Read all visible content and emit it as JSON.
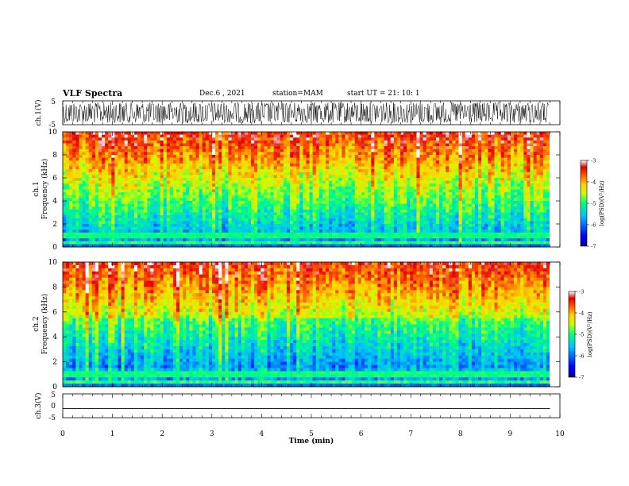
{
  "header": {
    "title": "VLF Spectra",
    "date": "Dec.6 , 2021",
    "station": "station=MAM",
    "start": "start UT =  21: 10: 1"
  },
  "chart_data": [
    {
      "type": "line",
      "panel": "ch1-waveform",
      "ylabel": "ch.1(V)",
      "ylim": [
        -5,
        5
      ],
      "yticks": [
        5,
        -5
      ],
      "xlim": [
        0,
        10
      ]
    },
    {
      "type": "heatmap",
      "panel": "ch1-spectrogram",
      "ylabel": "ch.1\nFrequency (kHz)",
      "ylabel_line1": "ch.1",
      "ylabel_line2": "Frequency (kHz)",
      "ylim": [
        0,
        10
      ],
      "yticks": [
        "0",
        "2",
        "4",
        "6",
        "8",
        "10"
      ],
      "xlim": [
        0,
        10
      ],
      "colorbar": {
        "label": "log(PSD)(V²/Hz)",
        "range": [
          -7,
          -3
        ],
        "ticks": [
          "-3",
          "-4",
          "-5",
          "-6",
          "-7"
        ]
      }
    },
    {
      "type": "heatmap",
      "panel": "ch2-spectrogram",
      "ylabel_line1": "ch.2",
      "ylabel_line2": "Frequency (kHz)",
      "ylim": [
        0,
        10
      ],
      "yticks": [
        "0",
        "2",
        "4",
        "6",
        "8",
        "10"
      ],
      "xlim": [
        0,
        10
      ],
      "colorbar": {
        "label": "log(PSD)(V²/Hz)",
        "range": [
          -7,
          -3
        ],
        "ticks": [
          "-3",
          "-4",
          "-5",
          "-6",
          "-7"
        ]
      }
    },
    {
      "type": "line",
      "panel": "ch3-waveform",
      "ylabel": "ch.3(V)",
      "ylim": [
        -5,
        5
      ],
      "yticks": [
        5,
        0,
        -5
      ],
      "xlim": [
        0,
        10
      ],
      "x": [
        0,
        9.8
      ],
      "y": [
        -1.2,
        -1.2
      ]
    }
  ],
  "xaxis": {
    "label": "Time (min)",
    "ticks": [
      "0",
      "1",
      "2",
      "3",
      "4",
      "5",
      "6",
      "7",
      "8",
      "9",
      "10"
    ]
  },
  "colors": {
    "jet": [
      "#00008f",
      "#0000ff",
      "#00bfff",
      "#00ff80",
      "#c8ff00",
      "#ffd200",
      "#ff6000",
      "#e00000",
      "#ffffff"
    ]
  }
}
